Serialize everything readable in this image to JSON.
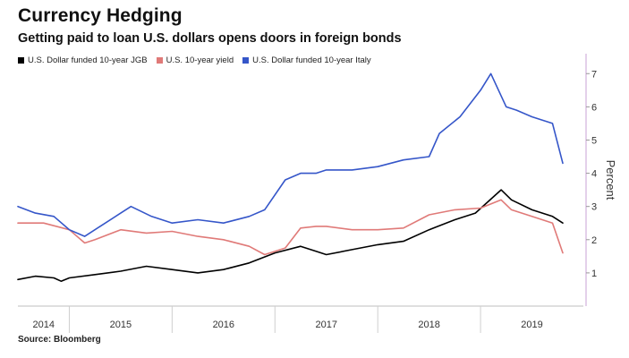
{
  "header": {
    "title": "Currency Hedging",
    "subtitle": "Getting paid to loan U.S. dollars opens doors in foreign bonds"
  },
  "source": "Source: Bloomberg",
  "chart_data": {
    "type": "line",
    "title": "Currency Hedging",
    "subtitle": "Getting paid to loan U.S. dollars opens doors in foreign bonds",
    "xlabel": "",
    "ylabel": "Percent",
    "y_axis_side": "right",
    "ylim": [
      0,
      7.6
    ],
    "yticks": [
      1,
      2,
      3,
      4,
      5,
      6,
      7
    ],
    "xlim": [
      2014.0,
      2019.5
    ],
    "x_tick_labels": [
      {
        "x": 2014.25,
        "label": "2014"
      },
      {
        "x": 2015.0,
        "label": "2015"
      },
      {
        "x": 2016.0,
        "label": "2016"
      },
      {
        "x": 2017.0,
        "label": "2017"
      },
      {
        "x": 2018.0,
        "label": "2018"
      },
      {
        "x": 2019.0,
        "label": "2019"
      }
    ],
    "x_dividers": [
      2014.5,
      2015.5,
      2016.5,
      2017.5,
      2018.5
    ],
    "legend_position": "top-left",
    "grid": false,
    "series": [
      {
        "name": "U.S. Dollar funded 10-year JGB",
        "color": "#000000",
        "x": [
          2014.0,
          2014.17,
          2014.35,
          2014.42,
          2014.5,
          2014.75,
          2015.0,
          2015.25,
          2015.5,
          2015.75,
          2016.0,
          2016.25,
          2016.5,
          2016.75,
          2016.9,
          2017.0,
          2017.25,
          2017.5,
          2017.75,
          2018.0,
          2018.25,
          2018.45,
          2018.7,
          2018.8,
          2019.0,
          2019.2,
          2019.3
        ],
        "y": [
          0.8,
          0.9,
          0.85,
          0.75,
          0.85,
          0.95,
          1.05,
          1.2,
          1.1,
          1.0,
          1.1,
          1.3,
          1.6,
          1.8,
          1.65,
          1.55,
          1.7,
          1.85,
          1.95,
          2.3,
          2.6,
          2.8,
          3.5,
          3.2,
          2.9,
          2.7,
          2.5
        ]
      },
      {
        "name": "U.S. 10-year yield",
        "color": "#e07a78",
        "x": [
          2014.0,
          2014.25,
          2014.5,
          2014.65,
          2014.75,
          2015.0,
          2015.25,
          2015.5,
          2015.75,
          2016.0,
          2016.25,
          2016.4,
          2016.6,
          2016.75,
          2016.9,
          2017.0,
          2017.25,
          2017.5,
          2017.75,
          2018.0,
          2018.25,
          2018.5,
          2018.7,
          2018.8,
          2019.0,
          2019.2,
          2019.3
        ],
        "y": [
          2.5,
          2.5,
          2.3,
          1.9,
          2.0,
          2.3,
          2.2,
          2.25,
          2.1,
          2.0,
          1.8,
          1.55,
          1.75,
          2.35,
          2.4,
          2.4,
          2.3,
          2.3,
          2.35,
          2.75,
          2.9,
          2.95,
          3.2,
          2.9,
          2.7,
          2.5,
          1.6
        ]
      },
      {
        "name": "U.S. Dollar funded 10-year Italy",
        "color": "#3556c9",
        "x": [
          2014.0,
          2014.17,
          2014.35,
          2014.5,
          2014.65,
          2014.8,
          2015.0,
          2015.1,
          2015.3,
          2015.5,
          2015.75,
          2016.0,
          2016.25,
          2016.4,
          2016.6,
          2016.75,
          2016.9,
          2017.0,
          2017.25,
          2017.5,
          2017.75,
          2018.0,
          2018.1,
          2018.3,
          2018.5,
          2018.6,
          2018.75,
          2018.85,
          2019.0,
          2019.2,
          2019.3
        ],
        "y": [
          3.0,
          2.8,
          2.7,
          2.3,
          2.1,
          2.4,
          2.8,
          3.0,
          2.7,
          2.5,
          2.6,
          2.5,
          2.7,
          2.9,
          3.8,
          4.0,
          4.0,
          4.1,
          4.1,
          4.2,
          4.4,
          4.5,
          5.2,
          5.7,
          6.5,
          7.0,
          6.0,
          5.9,
          5.7,
          5.5,
          4.3
        ]
      }
    ]
  }
}
